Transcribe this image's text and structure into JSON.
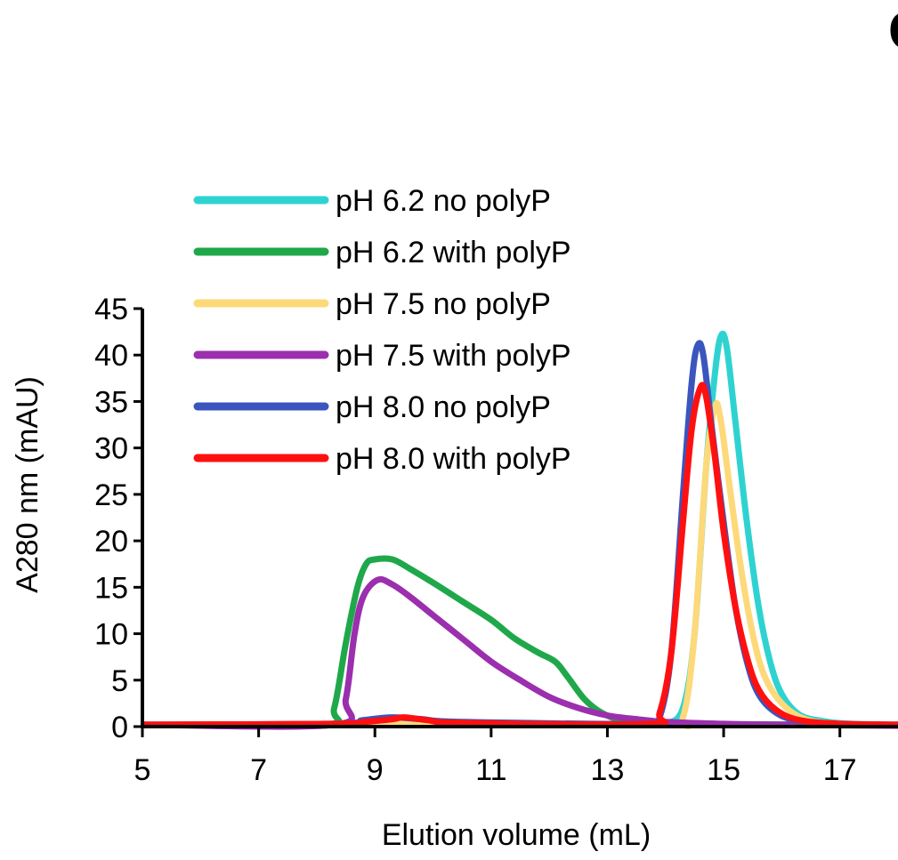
{
  "panel_label": "C",
  "chart_data": {
    "type": "line",
    "title": "",
    "xlabel": "Elution volume (mL)",
    "ylabel": "A280 nm (mAU)",
    "xlim": [
      5,
      18
    ],
    "ylim": [
      0,
      45
    ],
    "xticks": [
      5,
      7,
      9,
      11,
      13,
      15,
      17
    ],
    "yticks": [
      0,
      5,
      10,
      15,
      20,
      25,
      30,
      35,
      40,
      45
    ],
    "grid": false,
    "legend_position": "top-left",
    "series": [
      {
        "name": "pH 6.2 no polyP",
        "color": "#2ed3d1",
        "points": [
          [
            5,
            0.2
          ],
          [
            13.7,
            0.2
          ],
          [
            14,
            0.3
          ],
          [
            14.3,
            2
          ],
          [
            14.5,
            10
          ],
          [
            14.7,
            28
          ],
          [
            14.85,
            38
          ],
          [
            14.95,
            42
          ],
          [
            15.05,
            41
          ],
          [
            15.2,
            33
          ],
          [
            15.4,
            22
          ],
          [
            15.6,
            13
          ],
          [
            15.8,
            7
          ],
          [
            16,
            3.5
          ],
          [
            16.3,
            1.3
          ],
          [
            16.7,
            0.6
          ],
          [
            17.2,
            0.3
          ],
          [
            18,
            0.2
          ]
        ]
      },
      {
        "name": "pH 6.2 with polyP",
        "color": "#1fa84a",
        "points": [
          [
            5,
            0.2
          ],
          [
            8.1,
            0.2
          ],
          [
            8.3,
            2
          ],
          [
            8.5,
            9
          ],
          [
            8.7,
            15
          ],
          [
            8.85,
            17.5
          ],
          [
            9,
            18
          ],
          [
            9.3,
            18
          ],
          [
            9.6,
            17
          ],
          [
            10,
            15.5
          ],
          [
            10.5,
            13.5
          ],
          [
            11,
            11.5
          ],
          [
            11.4,
            9.5
          ],
          [
            11.8,
            8
          ],
          [
            12.1,
            7
          ],
          [
            12.3,
            5.5
          ],
          [
            12.6,
            3
          ],
          [
            12.9,
            1.5
          ],
          [
            13.3,
            0.6
          ],
          [
            14,
            0.3
          ],
          [
            18,
            0.2
          ]
        ]
      },
      {
        "name": "pH 7.5 no polyP",
        "color": "#fdd97a",
        "points": [
          [
            5,
            0.2
          ],
          [
            9.2,
            0.3
          ],
          [
            9.5,
            0.6
          ],
          [
            9.8,
            0.3
          ],
          [
            14,
            0.2
          ],
          [
            14.3,
            1
          ],
          [
            14.5,
            10
          ],
          [
            14.7,
            28
          ],
          [
            14.85,
            34.5
          ],
          [
            14.95,
            33
          ],
          [
            15.1,
            26
          ],
          [
            15.3,
            17
          ],
          [
            15.5,
            10
          ],
          [
            15.7,
            5.5
          ],
          [
            16,
            2.5
          ],
          [
            16.4,
            0.8
          ],
          [
            17,
            0.3
          ],
          [
            18,
            0.2
          ]
        ]
      },
      {
        "name": "pH 7.5 with polyP",
        "color": "#9b2fae",
        "points": [
          [
            5,
            0.2
          ],
          [
            8.3,
            0.2
          ],
          [
            8.5,
            3
          ],
          [
            8.65,
            10
          ],
          [
            8.8,
            14
          ],
          [
            9.05,
            15.8
          ],
          [
            9.3,
            15.3
          ],
          [
            9.6,
            14
          ],
          [
            10,
            12
          ],
          [
            10.5,
            9.5
          ],
          [
            11,
            7
          ],
          [
            11.5,
            5
          ],
          [
            12,
            3.2
          ],
          [
            12.5,
            2
          ],
          [
            13,
            1.2
          ],
          [
            13.5,
            0.8
          ],
          [
            14,
            0.5
          ],
          [
            15,
            0.3
          ],
          [
            16,
            0.2
          ],
          [
            18,
            0.1
          ]
        ]
      },
      {
        "name": "pH 8.0 no polyP",
        "color": "#3a55be",
        "points": [
          [
            5,
            0.2
          ],
          [
            8.3,
            0.3
          ],
          [
            8.8,
            0.7
          ],
          [
            9.3,
            1
          ],
          [
            9.8,
            0.8
          ],
          [
            10.5,
            0.5
          ],
          [
            13.7,
            0.3
          ],
          [
            13.9,
            1
          ],
          [
            14.1,
            8
          ],
          [
            14.3,
            25
          ],
          [
            14.45,
            37
          ],
          [
            14.55,
            41
          ],
          [
            14.65,
            40
          ],
          [
            14.8,
            32
          ],
          [
            15,
            22
          ],
          [
            15.2,
            13
          ],
          [
            15.4,
            7
          ],
          [
            15.6,
            3.5
          ],
          [
            15.9,
            1.5
          ],
          [
            16.3,
            0.6
          ],
          [
            17,
            0.3
          ],
          [
            18,
            0.2
          ]
        ]
      },
      {
        "name": "pH 8.0 with polyP",
        "color": "#ff1010",
        "points": [
          [
            5,
            0.2
          ],
          [
            8.3,
            0.3
          ],
          [
            8.8,
            0.5
          ],
          [
            9.3,
            0.8
          ],
          [
            9.5,
            1
          ],
          [
            9.9,
            0.7
          ],
          [
            10.5,
            0.4
          ],
          [
            13.7,
            0.3
          ],
          [
            13.9,
            1.5
          ],
          [
            14.1,
            8
          ],
          [
            14.3,
            22
          ],
          [
            14.45,
            32
          ],
          [
            14.6,
            36.5
          ],
          [
            14.7,
            35.5
          ],
          [
            14.85,
            29
          ],
          [
            15,
            21
          ],
          [
            15.2,
            13
          ],
          [
            15.4,
            7.5
          ],
          [
            15.6,
            4
          ],
          [
            15.9,
            1.8
          ],
          [
            16.3,
            0.7
          ],
          [
            17,
            0.3
          ],
          [
            18,
            0.2
          ]
        ]
      }
    ]
  }
}
